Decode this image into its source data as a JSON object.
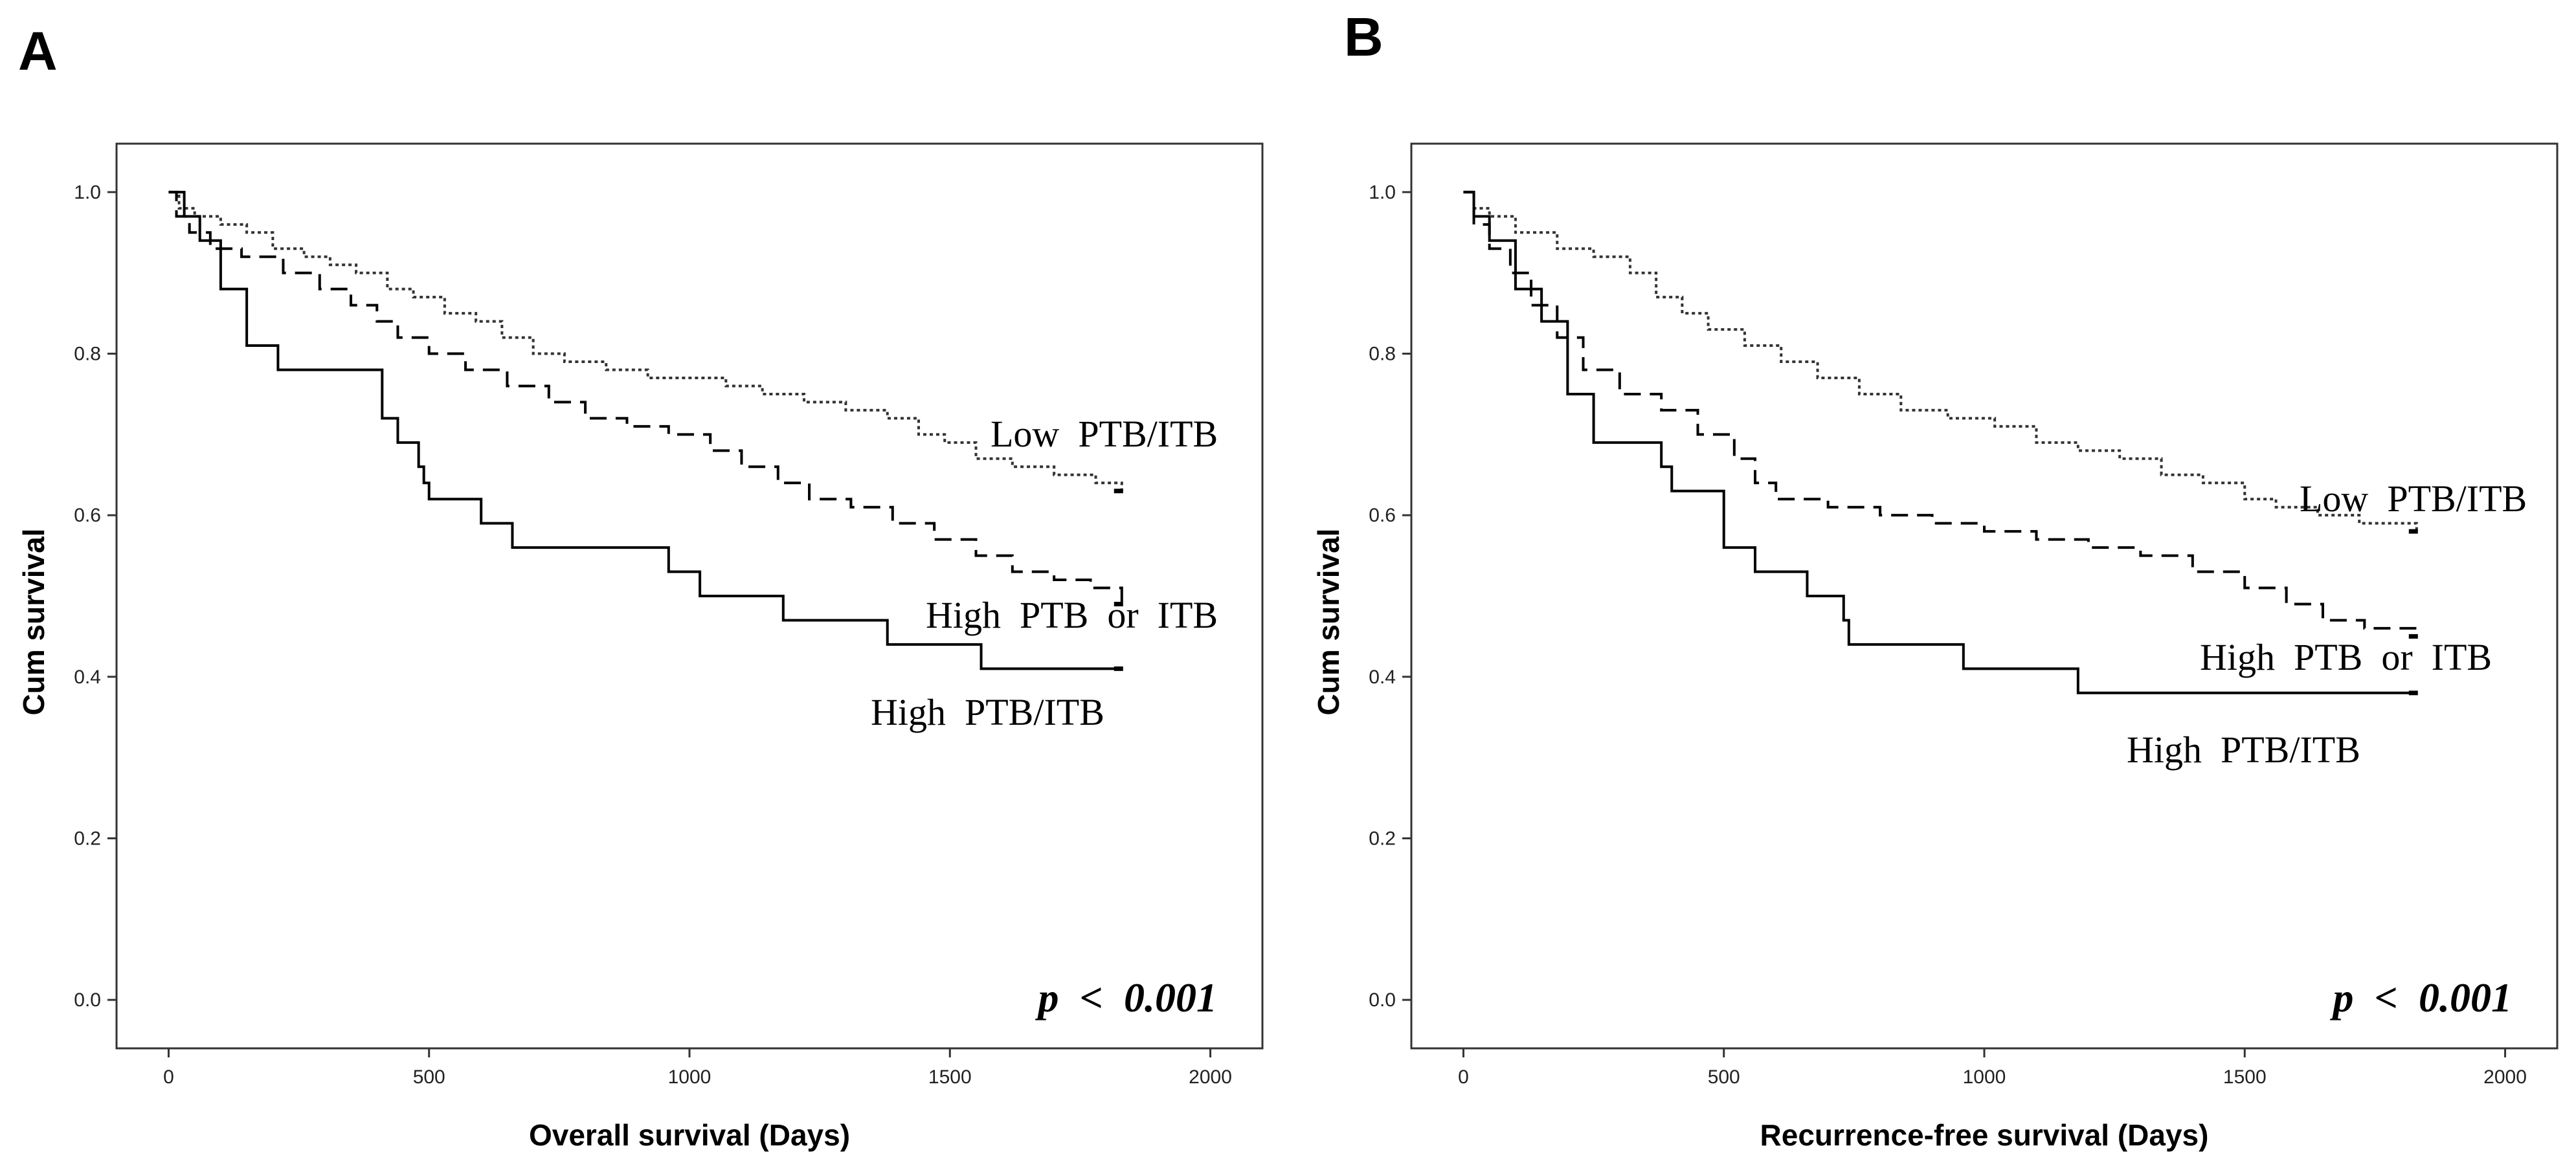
{
  "figure": {
    "panels": [
      {
        "letter": "A",
        "p_value": "p < 0.001"
      },
      {
        "letter": "B",
        "p_value": "p < 0.001"
      }
    ]
  },
  "chart_data": [
    {
      "type": "line",
      "subtype": "kaplan-meier step",
      "panel": "A",
      "xlabel": "Overall survival (Days)",
      "ylabel": "Cum survival",
      "xlim": [
        -100,
        2100
      ],
      "ylim": [
        -0.06,
        1.06
      ],
      "xticks": [
        0,
        500,
        1000,
        1500,
        2000
      ],
      "yticks": [
        0.0,
        0.2,
        0.4,
        0.6,
        0.8,
        1.0
      ],
      "annotation": "p < 0.001",
      "series": [
        {
          "name": "Low PTB/ITB",
          "dash": "dotted",
          "x": [
            0,
            20,
            50,
            100,
            150,
            200,
            260,
            310,
            360,
            420,
            470,
            530,
            590,
            640,
            700,
            760,
            840,
            920,
            1000,
            1070,
            1140,
            1220,
            1300,
            1380,
            1440,
            1490,
            1550,
            1620,
            1700,
            1780,
            1830
          ],
          "y": [
            1.0,
            0.98,
            0.97,
            0.96,
            0.95,
            0.93,
            0.92,
            0.91,
            0.9,
            0.88,
            0.87,
            0.85,
            0.84,
            0.82,
            0.8,
            0.79,
            0.78,
            0.77,
            0.77,
            0.76,
            0.75,
            0.74,
            0.73,
            0.72,
            0.7,
            0.69,
            0.67,
            0.66,
            0.65,
            0.64,
            0.63
          ]
        },
        {
          "name": "High PTB or ITB",
          "dash": "dashed",
          "x": [
            0,
            15,
            40,
            80,
            140,
            220,
            290,
            350,
            400,
            440,
            500,
            570,
            650,
            730,
            800,
            880,
            960,
            1040,
            1100,
            1170,
            1230,
            1310,
            1390,
            1470,
            1550,
            1620,
            1700,
            1770,
            1830
          ],
          "y": [
            1.0,
            0.97,
            0.95,
            0.93,
            0.92,
            0.9,
            0.88,
            0.86,
            0.84,
            0.82,
            0.8,
            0.78,
            0.76,
            0.74,
            0.72,
            0.71,
            0.7,
            0.68,
            0.66,
            0.64,
            0.62,
            0.61,
            0.59,
            0.57,
            0.55,
            0.53,
            0.52,
            0.51,
            0.49
          ]
        },
        {
          "name": "High PTB/ITB",
          "dash": "solid",
          "x": [
            0,
            30,
            60,
            100,
            150,
            210,
            300,
            410,
            440,
            480,
            490,
            500,
            600,
            660,
            760,
            960,
            1020,
            1180,
            1380,
            1560,
            1830
          ],
          "y": [
            1.0,
            0.97,
            0.94,
            0.88,
            0.81,
            0.78,
            0.78,
            0.72,
            0.69,
            0.66,
            0.64,
            0.62,
            0.59,
            0.56,
            0.56,
            0.53,
            0.5,
            0.47,
            0.44,
            0.41,
            0.41
          ]
        }
      ]
    },
    {
      "type": "line",
      "subtype": "kaplan-meier step",
      "panel": "B",
      "xlabel": "Recurrence-free survival (Days)",
      "ylabel": "Cum survival",
      "xlim": [
        -100,
        2100
      ],
      "ylim": [
        -0.06,
        1.06
      ],
      "xticks": [
        0,
        500,
        1000,
        1500,
        2000
      ],
      "yticks": [
        0.0,
        0.2,
        0.4,
        0.6,
        0.8,
        1.0
      ],
      "annotation": "p < 0.001",
      "series": [
        {
          "name": "Low PTB/ITB",
          "dash": "dotted",
          "x": [
            0,
            20,
            50,
            100,
            180,
            250,
            320,
            370,
            420,
            470,
            540,
            610,
            680,
            760,
            840,
            930,
            1020,
            1100,
            1180,
            1260,
            1340,
            1420,
            1500,
            1560,
            1640,
            1720,
            1830
          ],
          "y": [
            1.0,
            0.98,
            0.97,
            0.95,
            0.93,
            0.92,
            0.9,
            0.87,
            0.85,
            0.83,
            0.81,
            0.79,
            0.77,
            0.75,
            0.73,
            0.72,
            0.71,
            0.69,
            0.68,
            0.67,
            0.65,
            0.64,
            0.62,
            0.61,
            0.6,
            0.59,
            0.58
          ]
        },
        {
          "name": "High PTB or ITB",
          "dash": "dashed",
          "x": [
            0,
            20,
            50,
            90,
            130,
            180,
            230,
            300,
            380,
            450,
            520,
            560,
            600,
            700,
            800,
            900,
            1000,
            1100,
            1200,
            1300,
            1400,
            1500,
            1580,
            1650,
            1730,
            1830
          ],
          "y": [
            1.0,
            0.96,
            0.93,
            0.9,
            0.86,
            0.82,
            0.78,
            0.75,
            0.73,
            0.7,
            0.67,
            0.64,
            0.62,
            0.61,
            0.6,
            0.59,
            0.58,
            0.57,
            0.56,
            0.55,
            0.53,
            0.51,
            0.49,
            0.47,
            0.46,
            0.45
          ]
        },
        {
          "name": "High PTB/ITB",
          "dash": "solid",
          "x": [
            0,
            20,
            50,
            100,
            150,
            200,
            250,
            380,
            400,
            500,
            560,
            660,
            730,
            740,
            960,
            1180,
            1830
          ],
          "y": [
            1.0,
            0.97,
            0.94,
            0.88,
            0.84,
            0.75,
            0.69,
            0.66,
            0.63,
            0.56,
            0.53,
            0.5,
            0.47,
            0.44,
            0.41,
            0.38,
            0.38
          ]
        }
      ]
    }
  ]
}
